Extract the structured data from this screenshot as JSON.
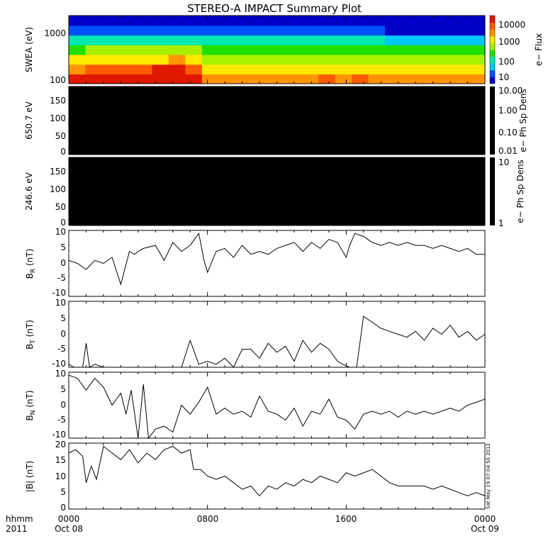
{
  "title": "STEREO-A IMPACT Summary Plot",
  "footer": {
    "left_label_1": "hhmm",
    "left_label_2": "2011",
    "x_ticks_time": [
      "0000",
      "0800",
      "1600",
      "0000"
    ],
    "x_ticks_date": [
      "Oct 08",
      "",
      "",
      "Oct 09"
    ],
    "timestamp": "Sat May 19 07:04:50 2012"
  },
  "colorbars": {
    "swea": {
      "label": "e− Flux",
      "ticks": [
        "10000",
        "1000",
        "100",
        "10"
      ]
    },
    "ph650": {
      "label": "e− Ph Sp Dens",
      "ticks": [
        "10.00",
        "1.00",
        "0.10",
        "0.01"
      ]
    },
    "ph246": {
      "label": "e− Ph Sp Dens",
      "ticks": [
        "10",
        "1"
      ]
    }
  },
  "colors": {
    "spectrogram": [
      "#0000c8",
      "#0050ff",
      "#00c8ff",
      "#00e8b0",
      "#20e000",
      "#a8f000",
      "#ffe800",
      "#ff9600",
      "#ff5a00",
      "#e01800"
    ],
    "black_panel": "#000000",
    "line": "#000000"
  },
  "chart_data": [
    {
      "type": "heatmap",
      "panel": "swea",
      "ylabel": "SWEA (eV)",
      "yscale": "log",
      "yticks": [
        "1000",
        "100"
      ],
      "ylim": [
        95,
        2000
      ],
      "x": [
        "00:00",
        "01:00",
        "02:00",
        "03:00",
        "04:00",
        "05:00",
        "06:00",
        "07:00",
        "08:00",
        "09:00",
        "10:00",
        "11:00",
        "12:00",
        "13:00",
        "14:00",
        "15:00",
        "16:00",
        "17:00",
        "18:00",
        "19:00",
        "20:00",
        "21:00",
        "22:00",
        "23:00",
        "24:00"
      ],
      "energies_eV": [
        100,
        150,
        250,
        400,
        650,
        1000,
        1600
      ],
      "log10_flux": [
        [
          4.0,
          4.2,
          4.1,
          4.2,
          4.3,
          4.4,
          4.5,
          4.2,
          3.6,
          3.5,
          3.5,
          3.6,
          3.6,
          3.6,
          3.6,
          3.7,
          3.6,
          3.7,
          3.6,
          3.4,
          3.4,
          3.5,
          3.5,
          3.4,
          3.4
        ],
        [
          3.6,
          3.8,
          3.7,
          3.8,
          3.9,
          4.0,
          4.1,
          3.8,
          3.3,
          3.2,
          3.2,
          3.3,
          3.3,
          3.3,
          3.3,
          3.3,
          3.3,
          3.3,
          3.3,
          3.1,
          3.1,
          3.2,
          3.2,
          3.1,
          3.1
        ],
        [
          3.1,
          3.2,
          3.2,
          3.2,
          3.3,
          3.3,
          3.4,
          3.2,
          2.9,
          2.9,
          2.9,
          2.9,
          2.9,
          2.9,
          2.9,
          2.9,
          2.9,
          2.9,
          2.9,
          2.8,
          2.8,
          2.8,
          2.8,
          2.8,
          2.8
        ],
        [
          2.6,
          2.7,
          2.7,
          2.7,
          2.7,
          2.7,
          2.8,
          2.7,
          2.5,
          2.5,
          2.5,
          2.5,
          2.5,
          2.5,
          2.5,
          2.5,
          2.5,
          2.5,
          2.5,
          2.4,
          2.4,
          2.4,
          2.4,
          2.4,
          2.4
        ],
        [
          2.1,
          2.2,
          2.2,
          2.2,
          2.2,
          2.2,
          2.2,
          2.2,
          2.0,
          2.0,
          2.0,
          2.0,
          2.0,
          2.0,
          2.0,
          2.0,
          2.0,
          2.0,
          2.0,
          1.9,
          1.9,
          1.9,
          1.9,
          1.9,
          1.9
        ],
        [
          1.5,
          1.6,
          1.6,
          1.6,
          1.6,
          1.6,
          1.6,
          1.6,
          1.4,
          1.4,
          1.4,
          1.4,
          1.4,
          1.4,
          1.4,
          1.4,
          1.4,
          1.4,
          1.4,
          1.3,
          1.3,
          1.3,
          1.3,
          1.3,
          1.3
        ],
        [
          0.9,
          0.9,
          0.9,
          0.9,
          0.9,
          0.9,
          0.9,
          0.9,
          0.8,
          0.8,
          0.8,
          0.8,
          0.8,
          0.8,
          0.8,
          0.8,
          0.8,
          0.8,
          0.8,
          0.8,
          0.8,
          0.8,
          0.8,
          0.8,
          0.8
        ]
      ],
      "colorbar_range_log10": [
        1,
        4.3
      ]
    },
    {
      "type": "heatmap",
      "panel": "ph650",
      "ylabel": "650.7 eV",
      "yticks": [
        "150",
        "100",
        "50",
        "0"
      ],
      "ylim": [
        0,
        180
      ],
      "values": "all zero / black (no data)"
    },
    {
      "type": "heatmap",
      "panel": "ph246",
      "ylabel": "246.6 eV",
      "yticks": [
        "150",
        "100",
        "50",
        "0"
      ],
      "ylim": [
        0,
        180
      ],
      "values": "all zero / black (no data)"
    },
    {
      "type": "line",
      "panel": "br",
      "ylabel": "B_R (nT)",
      "yticks": [
        "10",
        "5",
        "0",
        "-5",
        "-10"
      ],
      "ylim": [
        -11,
        11
      ],
      "x_hours": [
        0,
        0.5,
        1,
        1.5,
        2,
        2.5,
        3,
        3.5,
        3.8,
        4,
        4.3,
        5,
        5.5,
        6,
        6.5,
        7,
        7.5,
        7.8,
        8,
        8.5,
        9,
        9.5,
        10,
        10.5,
        11,
        11.5,
        12,
        12.5,
        13,
        13.5,
        14,
        14.5,
        15,
        15.5,
        16,
        16.2,
        16.5,
        17,
        17.5,
        18,
        18.5,
        19,
        19.5,
        20,
        20.5,
        21,
        21.5,
        22,
        22.5,
        23,
        23.5,
        24
      ],
      "values": [
        1,
        0,
        -2,
        1,
        0,
        2,
        -7,
        4,
        3,
        4,
        5,
        6,
        1,
        7,
        4,
        6,
        10,
        1,
        -3,
        4,
        5,
        2,
        6,
        3,
        4,
        3,
        5,
        6,
        7,
        4,
        7,
        5,
        8,
        7,
        2,
        6,
        10,
        9,
        7,
        6,
        7,
        6,
        7,
        6,
        6,
        5,
        6,
        5,
        4,
        5,
        3,
        3
      ]
    },
    {
      "type": "line",
      "panel": "bt",
      "ylabel": "B_T (nT)",
      "yticks": [
        "10",
        "5",
        "0",
        "-5",
        "-10"
      ],
      "ylim": [
        -11,
        11
      ],
      "x_hours": [
        0,
        0.3,
        0.6,
        0.8,
        1,
        1.2,
        1.5,
        2,
        2.5,
        3,
        3.5,
        4,
        4.5,
        5,
        5.5,
        6,
        6.5,
        7,
        7.5,
        8,
        8.5,
        9,
        9.5,
        10,
        10.5,
        11,
        11.5,
        12,
        12.5,
        13,
        13.5,
        14,
        14.5,
        15,
        15.5,
        15.8,
        16.2,
        16.6,
        17,
        17.5,
        18,
        18.5,
        19,
        19.5,
        20,
        20.5,
        21,
        21.5,
        22,
        22.5,
        23,
        23.5,
        24
      ],
      "values": [
        -10,
        -11,
        -11,
        -11,
        -3,
        -11,
        -10,
        -11,
        -11,
        -11,
        -11,
        -11,
        -11,
        -11,
        -11,
        -11,
        -11,
        -2,
        -10,
        -9,
        -10,
        -8,
        -11,
        -5,
        -5,
        -8,
        -3,
        -6,
        -4,
        -9,
        -2,
        -6,
        -3,
        -5,
        -9,
        -10,
        -11,
        -11,
        6,
        4,
        2,
        1,
        0,
        -1,
        1,
        -2,
        2,
        0,
        3,
        -1,
        1,
        -2,
        0
      ]
    },
    {
      "type": "line",
      "panel": "bn",
      "ylabel": "B_N (nT)",
      "yticks": [
        "10",
        "5",
        "0",
        "-5",
        "-10"
      ],
      "ylim": [
        -11,
        11
      ],
      "x_hours": [
        0,
        0.5,
        1,
        1.5,
        2,
        2.5,
        3,
        3.3,
        3.6,
        4,
        4.3,
        4.6,
        5,
        5.5,
        6,
        6.5,
        7,
        7.5,
        8,
        8.5,
        9,
        9.5,
        10,
        10.5,
        11,
        11.5,
        12,
        12.5,
        13,
        13.5,
        14,
        14.5,
        15,
        15.5,
        16,
        16.5,
        17,
        17.5,
        18,
        18.5,
        19,
        19.5,
        20,
        20.5,
        21,
        21.5,
        22,
        22.5,
        23,
        23.5,
        24
      ],
      "values": [
        10,
        9,
        5,
        9,
        6,
        0,
        4,
        -3,
        5,
        -11,
        7,
        -11,
        -8,
        -7,
        -9,
        0,
        -3,
        1,
        6,
        -3,
        -1,
        -3,
        -2,
        -4,
        3,
        -2,
        -3,
        -5,
        -1,
        -7,
        -2,
        -3,
        2,
        -4,
        -5,
        -8,
        -3,
        -2,
        -3,
        -2,
        -4,
        -2,
        -3,
        -2,
        -3,
        -2,
        -1,
        -2,
        0,
        1,
        2
      ]
    },
    {
      "type": "line",
      "panel": "bmag",
      "ylabel": "|B| (nT)",
      "yticks": [
        "20",
        "15",
        "10",
        "5",
        "0"
      ],
      "ylim": [
        0,
        20
      ],
      "x_hours": [
        0,
        0.4,
        0.8,
        1,
        1.3,
        1.6,
        2,
        2.5,
        3,
        3.5,
        4,
        4.5,
        5,
        5.5,
        6,
        6.5,
        7,
        7.2,
        7.6,
        8,
        8.5,
        9,
        9.5,
        10,
        10.5,
        11,
        11.5,
        12,
        12.5,
        13,
        13.5,
        14,
        14.5,
        15,
        15.5,
        16,
        16.5,
        17,
        17.5,
        18,
        18.5,
        19,
        19.5,
        20,
        20.5,
        21,
        21.5,
        22,
        22.5,
        23,
        23.5,
        24
      ],
      "values": [
        17,
        18,
        16,
        8,
        13,
        9,
        19,
        17,
        15,
        18,
        14,
        17,
        15,
        18,
        19,
        17,
        18,
        12,
        12,
        10,
        9,
        10,
        8,
        6,
        7,
        4,
        7,
        6,
        8,
        7,
        9,
        8,
        10,
        9,
        8,
        11,
        10,
        11,
        12,
        10,
        8,
        7,
        7,
        7,
        7,
        6,
        7,
        6,
        5,
        4,
        5,
        4
      ]
    }
  ]
}
